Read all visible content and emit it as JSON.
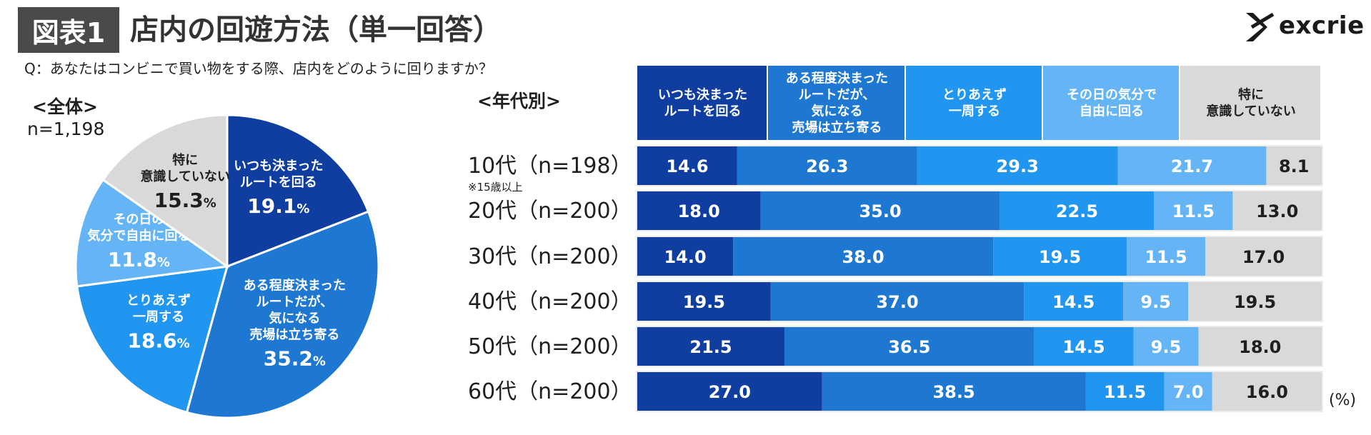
{
  "header": {
    "badge": "図表1",
    "title": "店内の回遊方法（単一回答）",
    "brand": "excrie"
  },
  "question": "Q：あなたはコンビニで買い物をする際、店内をどのように回りますか？",
  "overall": {
    "label": "<全体>",
    "n": "n=1,198"
  },
  "byage": {
    "label": "<年代別>",
    "unit": "(%)"
  },
  "colors": {
    "c1": "#0f3ea0",
    "c2": "#1e78d2",
    "c3": "#2196f0",
    "c4": "#64b4f6",
    "c5": "#d9d9d9"
  },
  "chart_data": [
    {
      "type": "pie",
      "title": "<全体>",
      "n": "n=1,198",
      "slices": [
        {
          "label": "いつも決まった\nルートを回る",
          "value": 19.1,
          "display": "19.1"
        },
        {
          "label": "ある程度決まった\nルートだが、\n気になる\n売場は立ち寄る",
          "value": 35.2,
          "display": "35.2"
        },
        {
          "label": "とりあえず\n一周する",
          "value": 18.6,
          "display": "18.6"
        },
        {
          "label": "その日の\n気分で自由に回る",
          "value": 11.8,
          "display": "11.8"
        },
        {
          "label": "特に\n意識していない",
          "value": 15.3,
          "display": "15.3"
        }
      ]
    },
    {
      "type": "bar",
      "orientation": "horizontal",
      "stacked": true,
      "title": "<年代別>",
      "categories": [
        "10代（n=198）",
        "20代（n=200）",
        "30代（n=200）",
        "40代（n=200）",
        "50代（n=200）",
        "60代（n=200）"
      ],
      "category_note": {
        "10代（n=198）": "※15歳以上"
      },
      "unit": "(%)",
      "series": [
        {
          "name": "いつも決まった\nルートを回る",
          "values": [
            14.6,
            18.0,
            14.0,
            19.5,
            21.5,
            27.0
          ],
          "labels": [
            "14.6",
            "18.0",
            "14.0",
            "19.5",
            "21.5",
            "27.0"
          ]
        },
        {
          "name": "ある程度決まった\nルートだが、\n気になる\n売場は立ち寄る",
          "values": [
            26.3,
            35.0,
            38.0,
            37.0,
            36.5,
            38.5
          ],
          "labels": [
            "26.3",
            "35.0",
            "38.0",
            "37.0",
            "36.5",
            "38.5"
          ]
        },
        {
          "name": "とりあえず\n一周する",
          "values": [
            29.3,
            22.5,
            19.5,
            14.5,
            14.5,
            11.5
          ],
          "labels": [
            "29.3",
            "22.5",
            "19.5",
            "14.5",
            "14.5",
            "11.5"
          ]
        },
        {
          "name": "その日の気分で\n自由に回る",
          "values": [
            21.7,
            11.5,
            11.5,
            9.5,
            9.5,
            7.0
          ],
          "labels": [
            "21.7",
            "11.5",
            "11.5",
            "9.5",
            "9.5",
            "7.0"
          ]
        },
        {
          "name": "特に\n意識していない",
          "values": [
            8.1,
            13.0,
            17.0,
            19.5,
            18.0,
            16.0
          ],
          "labels": [
            "8.1",
            "13.0",
            "17.0",
            "19.5",
            "18.0",
            "16.0"
          ]
        }
      ],
      "xlim": [
        0,
        100
      ]
    }
  ]
}
